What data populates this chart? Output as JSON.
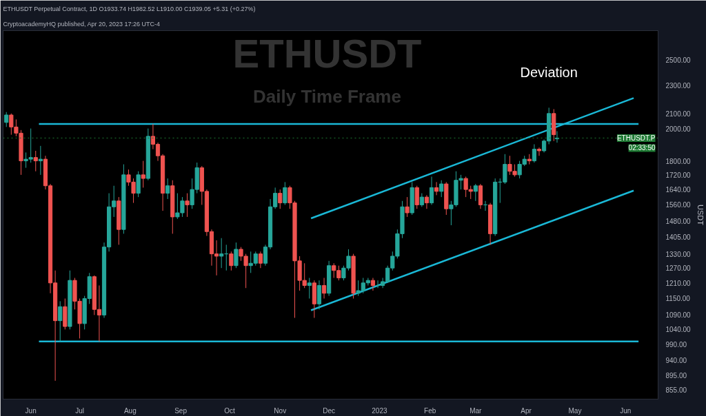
{
  "chart_data": {
    "type": "candlestick",
    "title": "ETHUSDT",
    "subtitle": "Daily Time Frame",
    "ylabel": "USDT",
    "annotations": [
      "ETHUSDT Perpetual Contract, 1D  O1933.74 H1982.52 L1910.00 C1939.05 +5.31 (+0.27%)",
      "CryptoacademyHQ published, Apr 20, 2023 17:26 UTC-4",
      {
        "text": "Deviation",
        "x": "2023-04-15",
        "y": 2140
      },
      "02:33:50"
    ],
    "x": [
      "2022-05-17",
      "2022-05-20",
      "2022-05-23",
      "2022-05-26",
      "2022-05-29",
      "2022-06-01",
      "2022-06-04",
      "2022-06-07",
      "2022-06-10",
      "2022-06-13",
      "2022-06-16",
      "2022-06-19",
      "2022-06-22",
      "2022-06-25",
      "2022-06-28",
      "2022-07-01",
      "2022-07-04",
      "2022-07-07",
      "2022-07-10",
      "2022-07-13",
      "2022-07-16",
      "2022-07-19",
      "2022-07-22",
      "2022-07-25",
      "2022-07-28",
      "2022-07-31",
      "2022-08-03",
      "2022-08-06",
      "2022-08-09",
      "2022-08-12",
      "2022-08-15",
      "2022-08-18",
      "2022-08-21",
      "2022-08-24",
      "2022-08-27",
      "2022-08-30",
      "2022-09-02",
      "2022-09-05",
      "2022-09-08",
      "2022-09-11",
      "2022-09-14",
      "2022-09-17",
      "2022-09-20",
      "2022-09-23",
      "2022-09-26",
      "2022-09-29",
      "2022-10-02",
      "2022-10-05",
      "2022-10-08",
      "2022-10-11",
      "2022-10-14",
      "2022-10-17",
      "2022-10-20",
      "2022-10-23",
      "2022-10-26",
      "2022-10-29",
      "2022-11-01",
      "2022-11-04",
      "2022-11-07",
      "2022-11-10",
      "2022-11-13",
      "2022-11-16",
      "2022-11-19",
      "2022-11-22",
      "2022-11-25",
      "2022-11-28",
      "2022-12-01",
      "2022-12-04",
      "2022-12-07",
      "2022-12-10",
      "2022-12-13",
      "2022-12-16",
      "2022-12-19",
      "2022-12-22",
      "2022-12-25",
      "2022-12-28",
      "2022-12-31",
      "2023-01-03",
      "2023-01-06",
      "2023-01-09",
      "2023-01-12",
      "2023-01-15",
      "2023-01-18",
      "2023-01-21",
      "2023-01-24",
      "2023-01-27",
      "2023-01-30",
      "2023-02-02",
      "2023-02-05",
      "2023-02-08",
      "2023-02-11",
      "2023-02-14",
      "2023-02-17",
      "2023-02-20",
      "2023-02-23",
      "2023-02-26",
      "2023-03-01",
      "2023-03-04",
      "2023-03-07",
      "2023-03-10",
      "2023-03-13",
      "2023-03-16",
      "2023-03-19",
      "2023-03-22",
      "2023-03-25",
      "2023-03-28",
      "2023-03-31",
      "2023-04-03",
      "2023-04-06",
      "2023-04-09",
      "2023-04-12",
      "2023-04-15",
      "2023-04-18",
      "2023-04-20"
    ],
    "ohlc": [
      [
        2040,
        2110,
        2010,
        2090
      ],
      [
        2090,
        2100,
        1960,
        2010
      ],
      [
        2010,
        2060,
        1950,
        1970
      ],
      [
        1970,
        1990,
        1720,
        1800
      ],
      [
        1800,
        1850,
        1760,
        1810
      ],
      [
        1810,
        2000,
        1790,
        1820
      ],
      [
        1820,
        1860,
        1740,
        1800
      ],
      [
        1800,
        1890,
        1720,
        1810
      ],
      [
        1810,
        1830,
        1640,
        1660
      ],
      [
        1660,
        1670,
        1170,
        1210
      ],
      [
        1210,
        1260,
        880,
        1070
      ],
      [
        1070,
        1140,
        1000,
        1120
      ],
      [
        1120,
        1150,
        1040,
        1050
      ],
      [
        1050,
        1260,
        1040,
        1220
      ],
      [
        1220,
        1230,
        1110,
        1140
      ],
      [
        1140,
        1150,
        1010,
        1060
      ],
      [
        1060,
        1160,
        1040,
        1150
      ],
      [
        1150,
        1250,
        1130,
        1235
      ],
      [
        1235,
        1240,
        1090,
        1110
      ],
      [
        1110,
        1200,
        1000,
        1090
      ],
      [
        1090,
        1380,
        1080,
        1360
      ],
      [
        1360,
        1620,
        1340,
        1550
      ],
      [
        1550,
        1660,
        1500,
        1580
      ],
      [
        1580,
        1600,
        1370,
        1440
      ],
      [
        1440,
        1780,
        1420,
        1720
      ],
      [
        1720,
        1750,
        1660,
        1680
      ],
      [
        1680,
        1700,
        1570,
        1620
      ],
      [
        1620,
        1740,
        1600,
        1720
      ],
      [
        1720,
        1800,
        1650,
        1700
      ],
      [
        1700,
        2000,
        1690,
        1950
      ],
      [
        1950,
        2030,
        1870,
        1900
      ],
      [
        1900,
        1910,
        1800,
        1830
      ],
      [
        1830,
        1840,
        1530,
        1620
      ],
      [
        1620,
        1700,
        1590,
        1660
      ],
      [
        1660,
        1690,
        1420,
        1500
      ],
      [
        1500,
        1620,
        1490,
        1520
      ],
      [
        1520,
        1600,
        1500,
        1580
      ],
      [
        1580,
        1620,
        1500,
        1560
      ],
      [
        1560,
        1700,
        1540,
        1640
      ],
      [
        1640,
        1790,
        1620,
        1760
      ],
      [
        1760,
        1770,
        1560,
        1630
      ],
      [
        1630,
        1640,
        1410,
        1430
      ],
      [
        1430,
        1440,
        1280,
        1330
      ],
      [
        1330,
        1390,
        1240,
        1320
      ],
      [
        1320,
        1400,
        1270,
        1330
      ],
      [
        1330,
        1370,
        1260,
        1330
      ],
      [
        1330,
        1340,
        1260,
        1280
      ],
      [
        1280,
        1380,
        1270,
        1350
      ],
      [
        1350,
        1360,
        1300,
        1320
      ],
      [
        1320,
        1330,
        1190,
        1280
      ],
      [
        1280,
        1340,
        1250,
        1290
      ],
      [
        1290,
        1340,
        1280,
        1330
      ],
      [
        1330,
        1340,
        1270,
        1290
      ],
      [
        1290,
        1370,
        1280,
        1360
      ],
      [
        1360,
        1590,
        1350,
        1550
      ],
      [
        1550,
        1650,
        1540,
        1620
      ],
      [
        1620,
        1640,
        1540,
        1570
      ],
      [
        1570,
        1680,
        1560,
        1650
      ],
      [
        1650,
        1660,
        1540,
        1570
      ],
      [
        1570,
        1580,
        1080,
        1300
      ],
      [
        1300,
        1320,
        1180,
        1220
      ],
      [
        1220,
        1290,
        1190,
        1200
      ],
      [
        1200,
        1230,
        1150,
        1210
      ],
      [
        1210,
        1220,
        1080,
        1130
      ],
      [
        1130,
        1220,
        1110,
        1200
      ],
      [
        1200,
        1230,
        1150,
        1170
      ],
      [
        1170,
        1300,
        1160,
        1280
      ],
      [
        1280,
        1290,
        1230,
        1260
      ],
      [
        1260,
        1280,
        1220,
        1230
      ],
      [
        1230,
        1280,
        1220,
        1270
      ],
      [
        1270,
        1350,
        1260,
        1320
      ],
      [
        1320,
        1330,
        1150,
        1170
      ],
      [
        1170,
        1220,
        1160,
        1180
      ],
      [
        1180,
        1230,
        1170,
        1210
      ],
      [
        1210,
        1230,
        1200,
        1220
      ],
      [
        1220,
        1230,
        1180,
        1200
      ],
      [
        1200,
        1220,
        1190,
        1200
      ],
      [
        1200,
        1230,
        1190,
        1215
      ],
      [
        1215,
        1280,
        1210,
        1270
      ],
      [
        1270,
        1340,
        1260,
        1320
      ],
      [
        1320,
        1440,
        1310,
        1420
      ],
      [
        1420,
        1580,
        1400,
        1550
      ],
      [
        1550,
        1600,
        1500,
        1520
      ],
      [
        1520,
        1680,
        1510,
        1650
      ],
      [
        1650,
        1660,
        1540,
        1560
      ],
      [
        1560,
        1620,
        1550,
        1600
      ],
      [
        1600,
        1610,
        1540,
        1570
      ],
      [
        1570,
        1710,
        1560,
        1650
      ],
      [
        1650,
        1680,
        1610,
        1630
      ],
      [
        1630,
        1690,
        1600,
        1670
      ],
      [
        1670,
        1680,
        1510,
        1540
      ],
      [
        1540,
        1580,
        1460,
        1560
      ],
      [
        1560,
        1740,
        1550,
        1690
      ],
      [
        1690,
        1720,
        1640,
        1700
      ],
      [
        1700,
        1710,
        1600,
        1640
      ],
      [
        1640,
        1660,
        1590,
        1630
      ],
      [
        1630,
        1670,
        1580,
        1660
      ],
      [
        1660,
        1670,
        1540,
        1560
      ],
      [
        1560,
        1580,
        1530,
        1560
      ],
      [
        1560,
        1570,
        1370,
        1420
      ],
      [
        1420,
        1700,
        1410,
        1680
      ],
      [
        1680,
        1700,
        1570,
        1680
      ],
      [
        1680,
        1840,
        1670,
        1780
      ],
      [
        1780,
        1830,
        1720,
        1740
      ],
      [
        1740,
        1780,
        1710,
        1720
      ],
      [
        1720,
        1800,
        1700,
        1780
      ],
      [
        1780,
        1830,
        1770,
        1810
      ],
      [
        1810,
        1840,
        1780,
        1800
      ],
      [
        1800,
        1900,
        1790,
        1870
      ],
      [
        1870,
        1880,
        1830,
        1860
      ],
      [
        1860,
        1930,
        1850,
        1920
      ],
      [
        1920,
        2140,
        1900,
        2100
      ],
      [
        2100,
        2130,
        1920,
        1960
      ],
      [
        1933.74,
        1982.52,
        1910,
        1939.05
      ]
    ],
    "series": [
      {
        "type": "line",
        "color": "#1ab8d6",
        "x": [
          "2022-06-06",
          "2023-06-09"
        ],
        "values": [
          2030,
          2030
        ]
      },
      {
        "type": "line",
        "color": "#1ab8d6",
        "x": [
          "2022-06-06",
          "2023-06-09"
        ],
        "values": [
          1000,
          1000
        ]
      },
      {
        "type": "line",
        "color": "#1ab8d6",
        "x": [
          "2022-11-20",
          "2023-06-06"
        ],
        "values": [
          1493,
          2208
        ]
      },
      {
        "type": "line",
        "color": "#1ab8d6",
        "x": [
          "2022-11-20",
          "2023-06-06"
        ],
        "values": [
          1107,
          1634
        ]
      }
    ],
    "ref_lines": [
      {
        "axis": "y",
        "value": 1939.05,
        "label": "ETHUSDT.P",
        "color": "#1e7a33"
      }
    ],
    "log": true,
    "grid": false,
    "xlim": [
      "2022-05-15",
      "2023-06-21"
    ],
    "xticks": [
      {
        "value": "2022-06-01",
        "label": "Jun"
      },
      {
        "value": "2022-07-01",
        "label": "Jul"
      },
      {
        "value": "2022-08-01",
        "label": "Aug"
      },
      {
        "value": "2022-09-01",
        "label": "Sep"
      },
      {
        "value": "2022-10-01",
        "label": "Oct"
      },
      {
        "value": "2022-11-01",
        "label": "Nov"
      },
      {
        "value": "2022-12-01",
        "label": "Dec"
      },
      {
        "value": "2023-01-01",
        "label": "2023"
      },
      {
        "value": "2023-02-01",
        "label": "Feb"
      },
      {
        "value": "2023-03-01",
        "label": "Mar"
      },
      {
        "value": "2023-04-01",
        "label": "Apr"
      },
      {
        "value": "2023-05-01",
        "label": "May"
      },
      {
        "value": "2023-06-01",
        "label": "Jun"
      }
    ],
    "ylim": [
      829,
      2750
    ],
    "yticks": [
      {
        "value": 855,
        "label": "855.00"
      },
      {
        "value": 895,
        "label": "895.00"
      },
      {
        "value": 940,
        "label": "940.00"
      },
      {
        "value": 990,
        "label": "990.00"
      },
      {
        "value": 1040,
        "label": "1040.00"
      },
      {
        "value": 1090,
        "label": "1090.00"
      },
      {
        "value": 1150,
        "label": "1150.00"
      },
      {
        "value": 1210,
        "label": "1210.00"
      },
      {
        "value": 1270,
        "label": "1270.00"
      },
      {
        "value": 1330,
        "label": "1330.00"
      },
      {
        "value": 1405,
        "label": "1405.00"
      },
      {
        "value": 1480,
        "label": "1480.00"
      },
      {
        "value": 1560,
        "label": "1560.00"
      },
      {
        "value": 1640,
        "label": "1640.00"
      },
      {
        "value": 1720,
        "label": "1720.00"
      },
      {
        "value": 1800,
        "label": "1800.00"
      },
      {
        "value": 2000,
        "label": "2000.00"
      },
      {
        "value": 2100,
        "label": "2100.00"
      },
      {
        "value": 2300,
        "label": "2300.00"
      },
      {
        "value": 2500,
        "label": "2500.00"
      }
    ]
  }
}
